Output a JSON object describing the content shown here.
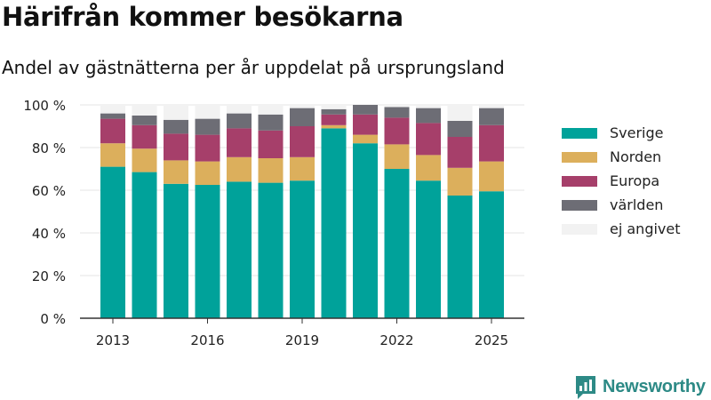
{
  "title": "Härifrån kommer besökarna",
  "subtitle": "Andel av gästnätterna per år uppdelat på ursprungsland",
  "brand": {
    "name": "Newsworthy",
    "icon": "newsworthy-logo-icon"
  },
  "chart_data": {
    "type": "bar",
    "stacked": true,
    "x": [
      2013,
      2014,
      2015,
      2016,
      2017,
      2018,
      2019,
      2020,
      2021,
      2022,
      2023,
      2024,
      2025
    ],
    "x_ticks": [
      "2013",
      "2016",
      "2019",
      "2022",
      "2025"
    ],
    "y_ticks": [
      "0 %",
      "20 %",
      "40 %",
      "60 %",
      "80 %",
      "100 %"
    ],
    "ylim": [
      0,
      100
    ],
    "grid": true,
    "legend_position": "right",
    "series": [
      {
        "name": "Sverige",
        "color": "#00a29a",
        "values": [
          71,
          68.5,
          63,
          62.5,
          64,
          63.5,
          64.5,
          89,
          82,
          70,
          64.5,
          57.5,
          59.5
        ]
      },
      {
        "name": "Norden",
        "color": "#dcaf5c",
        "values": [
          11,
          11,
          11,
          11,
          11.5,
          11.5,
          11,
          1.5,
          4,
          11.5,
          12,
          13,
          14
        ]
      },
      {
        "name": "Europa",
        "color": "#a63f6a",
        "values": [
          11.5,
          11,
          12.5,
          12.5,
          13.5,
          13,
          14.5,
          5,
          9.5,
          12.5,
          15,
          14.5,
          17
        ]
      },
      {
        "name": "världen",
        "color": "#6d6d75",
        "values": [
          2.5,
          4.5,
          6.5,
          7.5,
          7,
          7.5,
          8.5,
          2.5,
          4.5,
          5,
          7,
          7.5,
          8
        ]
      },
      {
        "name": "ej angivet",
        "color": "#f2f2f2",
        "values": [
          4,
          5,
          7,
          6.5,
          4,
          4.5,
          1.5,
          2,
          0,
          1,
          1.5,
          7.5,
          1.5
        ]
      }
    ]
  }
}
